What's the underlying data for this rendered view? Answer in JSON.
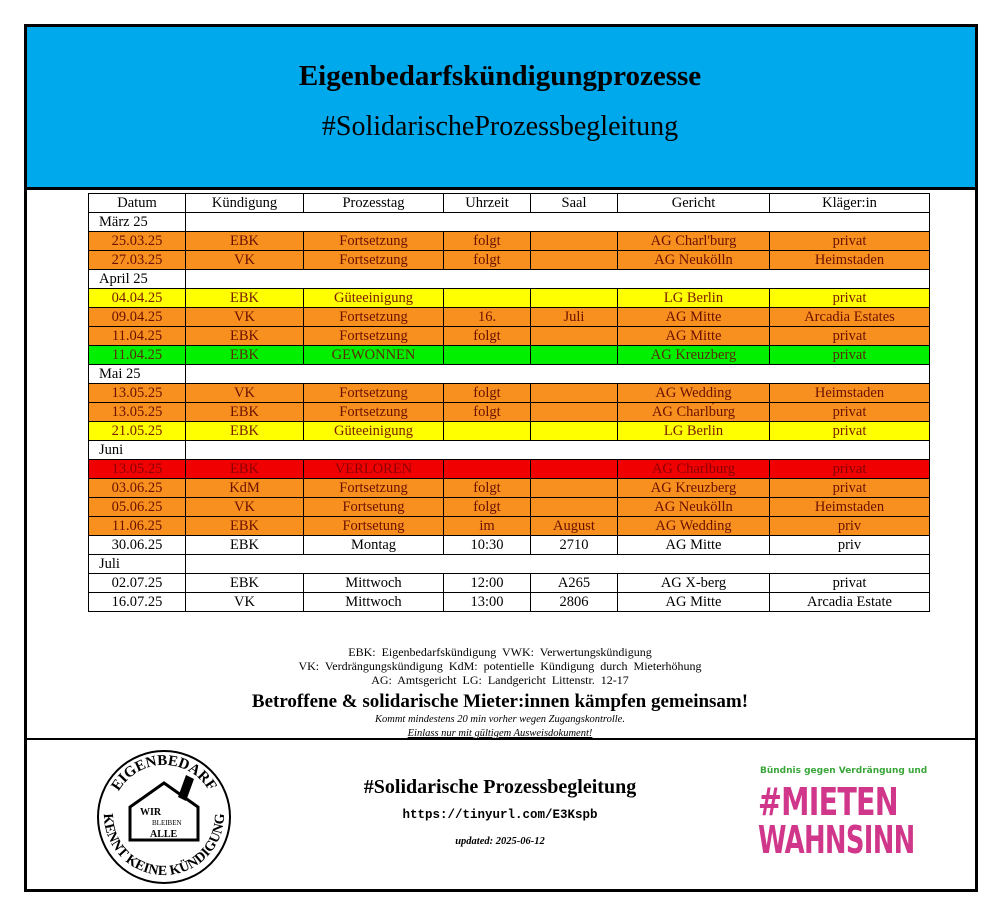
{
  "header": {
    "title": "Eigenbedarfskündigungprozesse",
    "subtitle": "#SolidarischeProzessbegleitung",
    "color": "#00a8ec"
  },
  "table": {
    "columns": [
      "Datum",
      "Kündigung",
      "Prozesstag",
      "Uhrzeit",
      "Saal",
      "Gericht",
      "Kläger:in"
    ],
    "rows": [
      {
        "section": "März 25"
      },
      {
        "cells": [
          "25.03.25",
          "EBK",
          "Fortsetzung",
          "folgt",
          null,
          "AG Charl'burg",
          "privat"
        ],
        "color": "#f7901e",
        "text_color": "#6b1000"
      },
      {
        "cells": [
          "27.03.25",
          "VK",
          "Fortsetzung",
          "folgt",
          null,
          "AG Neukölln",
          "Heimstaden"
        ],
        "color": "#f7901e",
        "text_color": "#6b1000"
      },
      {
        "section": "April 25"
      },
      {
        "cells": [
          "04.04.25",
          "EBK",
          "Güteeinigung",
          null,
          null,
          "LG Berlin",
          "privat"
        ],
        "color": "#ffff00",
        "text_color": "#7a1a00"
      },
      {
        "cells": [
          "09.04.25",
          "VK",
          "Fortsetzung",
          "16.",
          "Juli",
          "AG Mitte",
          "Arcadia Estates"
        ],
        "color": "#f7901e",
        "text_color": "#6b1000"
      },
      {
        "cells": [
          "11.04.25",
          "EBK",
          "Fortsetzung",
          "folgt",
          null,
          "AG Mitte",
          "privat"
        ],
        "color": "#f7901e",
        "text_color": "#6b1000"
      },
      {
        "cells": [
          "11.04.25",
          "EBK",
          "GEWONNEN",
          null,
          null,
          "AG Kreuzberg",
          "privat"
        ],
        "color": "#00f000",
        "text_color": "#5a2a00"
      },
      {
        "section": "Mai 25"
      },
      {
        "cells": [
          "13.05.25",
          "VK",
          "Fortsetzung",
          "folgt",
          null,
          "AG Wedding",
          "Heimstaden"
        ],
        "color": "#f7901e",
        "text_color": "#6b1000"
      },
      {
        "cells": [
          "13.05.25",
          "EBK",
          "Fortsetzung",
          "folgt",
          null,
          "AG Charlb́urg",
          "privat"
        ],
        "color": "#f7901e",
        "text_color": "#6b1000"
      },
      {
        "cells": [
          "21.05.25",
          "EBK",
          "Güteeinigung",
          null,
          null,
          "LG Berlin",
          "privat"
        ],
        "color": "#ffff00",
        "text_color": "#7a1a00"
      },
      {
        "section": "Juni"
      },
      {
        "cells": [
          "13.05.25",
          "EBK",
          "VERLOREN",
          null,
          null,
          "AG Charlb́urg",
          "privat"
        ],
        "color": "#f00000",
        "text_color": "#8b0000"
      },
      {
        "cells": [
          "03.06.25",
          "KdM",
          "Fortsetzung",
          "folgt",
          null,
          "AG Kreuzberg",
          "privat"
        ],
        "color": "#f7901e",
        "text_color": "#6b1000"
      },
      {
        "cells": [
          "05.06.25",
          "VK",
          "Fortsetung",
          "folgt",
          null,
          "AG Neukölln",
          "Heimstaden"
        ],
        "color": "#f7901e",
        "text_color": "#6b1000"
      },
      {
        "cells": [
          "11.06.25",
          "EBK",
          "Fortsetung",
          "im",
          "August",
          "AG Wedding",
          "priv"
        ],
        "color": "#f7901e",
        "text_color": "#6b1000"
      },
      {
        "cells": [
          "30.06.25",
          "EBK",
          "Montag",
          "10:30",
          "2710",
          "AG Mitte",
          "priv"
        ],
        "color": "#ffffff",
        "text_color": "#000000"
      },
      {
        "section": "Juli"
      },
      {
        "cells": [
          "02.07.25",
          "EBK",
          "Mittwoch",
          "12:00",
          "A265",
          "AG X-berg",
          "privat"
        ],
        "color": "#ffffff",
        "text_color": "#000000"
      },
      {
        "cells": [
          "16.07.25",
          "VK",
          "Mittwoch",
          "13:00",
          "2806",
          "AG Mitte",
          "Arcadia Estate"
        ],
        "color": "#ffffff",
        "text_color": "#000000"
      }
    ]
  },
  "legend": [
    "EBK: Eigenbedarfskündigung VWK: Verwertungskündigung",
    "VK: Verdrängungskündigung KdM: potentielle Kündigung durch Mieterhöhung",
    "AG: Amtsgericht LG: Landgericht Littenstr. 12-17"
  ],
  "slogan": "Betroffene & solidarische Mieter:innen kämpfen gemeinsam!",
  "notes": [
    "Kommt mindestens 20 min vorher wegen Zugangskontrolle.",
    "Einlass nur mit gültigem Ausweisdokument!"
  ],
  "footer": {
    "title": "#Solidarische Prozessbegleitung",
    "url": "https://tinyurl.com/E3Kspb",
    "updated": "updated:  2025-06-12"
  },
  "logo_left": {
    "top": "EIGENBEDARF",
    "bottom": "KENNT KEINE KÜNDIGUNG",
    "inner": [
      "WIR",
      "BLEIBEN",
      "ALLE"
    ]
  },
  "logo_right": {
    "tagline": "Bündnis gegen Verdrängung und",
    "line1": "#MIETEN",
    "line2": "WAHNSINN"
  }
}
